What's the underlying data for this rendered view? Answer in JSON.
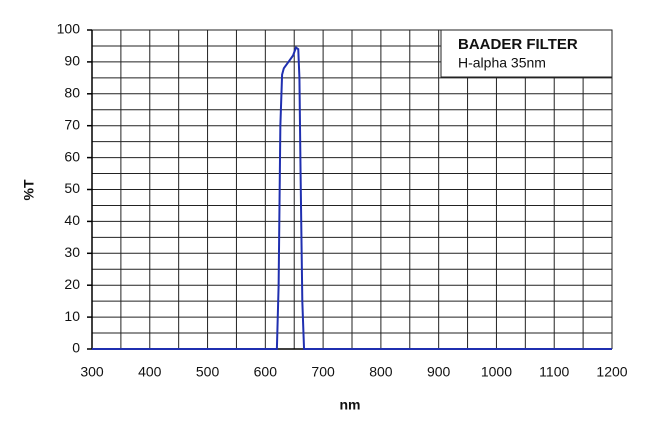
{
  "chart_data": {
    "type": "line",
    "x_label": "nm",
    "y_label": "%T",
    "legend_title": "BAADER FILTER",
    "series": [
      {
        "name": "H-alpha 35nm",
        "color": "#1f2fb0",
        "x": [
          300,
          620,
          623,
          626,
          629,
          632,
          640,
          648,
          653,
          657,
          659,
          661,
          664,
          667,
          1200
        ],
        "values": [
          0,
          0,
          20,
          70,
          86,
          88,
          90,
          92,
          94.5,
          94,
          85,
          55,
          15,
          0,
          0
        ]
      }
    ],
    "xlim": [
      300,
      1200
    ],
    "xticks": [
      300,
      400,
      500,
      600,
      700,
      800,
      900,
      1000,
      1100,
      1200
    ],
    "xminor": [
      350,
      450,
      550,
      650,
      750,
      850,
      950,
      1050,
      1150
    ],
    "ylim": [
      0,
      100
    ],
    "yticks": [
      0,
      10,
      20,
      30,
      40,
      50,
      60,
      70,
      80,
      90,
      100
    ],
    "yminor": [
      5,
      15,
      25,
      35,
      45,
      55,
      65,
      75,
      85,
      95
    ],
    "grid": true
  }
}
